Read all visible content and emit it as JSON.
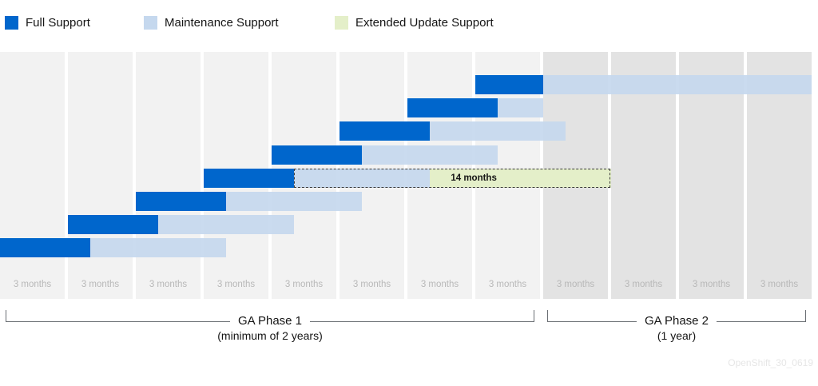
{
  "legend": [
    {
      "label": "Full Support",
      "color": "#0066cc"
    },
    {
      "label": "Maintenance Support",
      "color": "#c5d8ee"
    },
    {
      "label": "Extended Update Support",
      "color": "#e4efc9"
    }
  ],
  "columns": [
    {
      "label": "3 months",
      "phase": 1
    },
    {
      "label": "3 months",
      "phase": 1
    },
    {
      "label": "3 months",
      "phase": 1
    },
    {
      "label": "3 months",
      "phase": 1
    },
    {
      "label": "3 months",
      "phase": 1
    },
    {
      "label": "3 months",
      "phase": 1
    },
    {
      "label": "3 months",
      "phase": 1
    },
    {
      "label": "3 months",
      "phase": 1
    },
    {
      "label": "3 months",
      "phase": 2
    },
    {
      "label": "3 months",
      "phase": 2
    },
    {
      "label": "3 months",
      "phase": 2
    },
    {
      "label": "3 months",
      "phase": 2
    }
  ],
  "releases": [
    {
      "full_start_months": 0,
      "full_months": 4,
      "maint_months": 6
    },
    {
      "full_start_months": 3,
      "full_months": 4,
      "maint_months": 6
    },
    {
      "full_start_months": 6,
      "full_months": 4,
      "maint_months": 6
    },
    {
      "full_start_months": 9,
      "full_months": 4,
      "maint_months": 6,
      "eus_months": 14
    },
    {
      "full_start_months": 12,
      "full_months": 4,
      "maint_months": 6
    },
    {
      "full_start_months": 15,
      "full_months": 4,
      "maint_months": 6
    },
    {
      "full_start_months": 18,
      "full_months": 4,
      "maint_months": 2
    },
    {
      "full_start_months": 21,
      "full_months": 3,
      "maint_months": 13
    }
  ],
  "eus_label": "14 months",
  "phases": [
    {
      "title": "GA Phase 1",
      "subtitle": "(minimum of 2 years)"
    },
    {
      "title": "GA Phase 2",
      "subtitle": "(1 year)"
    }
  ],
  "watermark": "OpenShift_30_0619"
}
